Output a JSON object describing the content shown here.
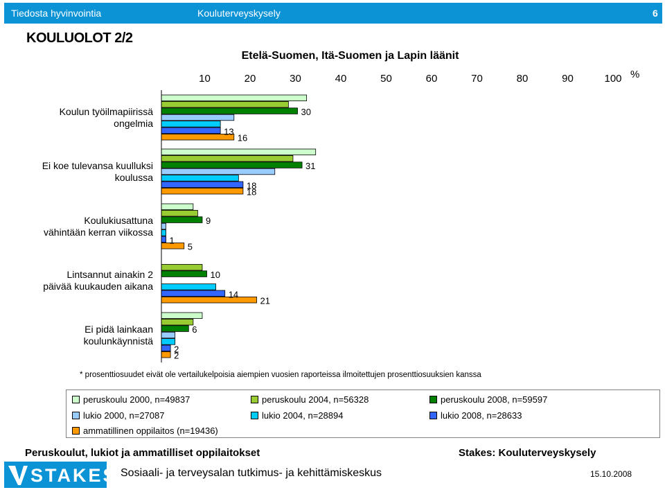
{
  "header": {
    "left": "Tiedosta hyvinvointia",
    "center": "Kouluterveyskysely",
    "page_number": "6"
  },
  "page_title": "KOULUOLOT 2/2",
  "chart_data": {
    "type": "bar",
    "orientation": "horizontal",
    "title": "Etelä-Suomen, Itä-Suomen ja Lapin läänit",
    "x_ticks": [
      "10",
      "20",
      "30",
      "40",
      "50",
      "60",
      "70",
      "80",
      "90",
      "100"
    ],
    "x_unit": "%",
    "xlim": [
      0,
      100
    ],
    "categories": [
      [
        "Koulun työilmapiirissä",
        "ongelmia"
      ],
      [
        "Ei koe tulevansa kuulluksi",
        "koulussa"
      ],
      [
        "Koulukiusattuna",
        "vähintään kerran viikossa"
      ],
      [
        "Lintsannut ainakin 2",
        "päivää kuukauden aikana"
      ],
      [
        "Ei pidä lainkaan",
        "koulunkäynnistä"
      ]
    ],
    "series": [
      {
        "name": "peruskoulu 2000, n=49837",
        "color": "#ccffcc",
        "values": [
          32,
          34,
          7,
          0,
          9
        ]
      },
      {
        "name": "peruskoulu 2004, n=56328",
        "color": "#99cc33",
        "values": [
          28,
          29,
          8,
          9,
          7
        ]
      },
      {
        "name": "peruskoulu 2008, n=59597",
        "color": "#008000",
        "values": [
          30,
          31,
          9,
          10,
          6
        ]
      },
      {
        "name": "lukio 2000, n=27087",
        "color": "#99ccff",
        "values": [
          16,
          25,
          1,
          0,
          3
        ]
      },
      {
        "name": "lukio 2004, n=28894",
        "color": "#00ccff",
        "values": [
          13,
          17,
          1,
          12,
          3
        ]
      },
      {
        "name": "lukio 2008, n=28633",
        "color": "#3366ff",
        "values": [
          13,
          18,
          1,
          14,
          2
        ]
      },
      {
        "name": "ammatillinen oppilaitos (n=19436)",
        "color": "#ff9900",
        "values": [
          16,
          18,
          5,
          21,
          2
        ]
      }
    ],
    "value_labels": [
      [
        null,
        null,
        "30",
        null,
        null,
        "13",
        "16"
      ],
      [
        null,
        null,
        "31",
        null,
        null,
        "18",
        "18"
      ],
      [
        null,
        null,
        "9",
        null,
        null,
        "1",
        "5"
      ],
      [
        null,
        null,
        "10",
        null,
        null,
        "14",
        "21"
      ],
      [
        null,
        null,
        "6",
        null,
        null,
        "2",
        "2"
      ]
    ],
    "footnote": "* prosenttiosuudet eivät ole vertailukelpoisia aiempien vuosien raporteissa ilmoitettujen prosenttiosuuksien kanssa"
  },
  "footer": {
    "left": "Peruskoulut, lukiot ja ammatilliset oppilaitokset",
    "right": "Stakes: Kouluterveyskysely",
    "logo": "STAKES",
    "org": "Sosiaali- ja terveysalan tutkimus- ja kehittämiskeskus",
    "date": "15.10.2008"
  }
}
